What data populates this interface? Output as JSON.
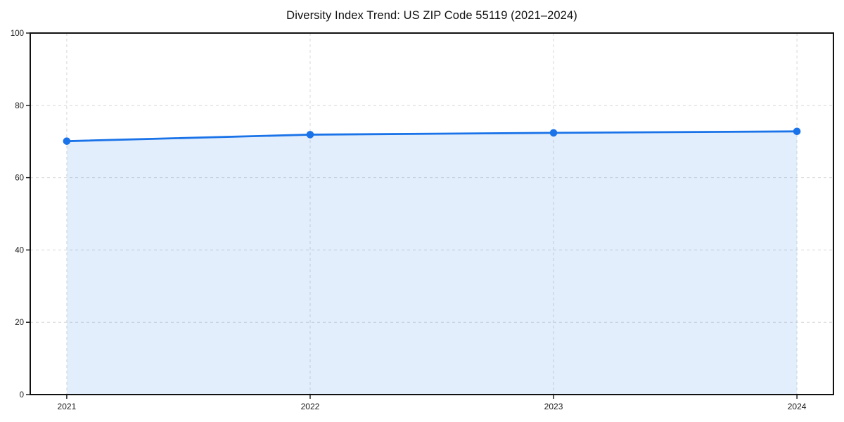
{
  "chart_data": {
    "type": "area",
    "title": "Diversity Index Trend: US ZIP Code 55119 (2021–2024)",
    "x": [
      2021,
      2022,
      2023,
      2024
    ],
    "xticklabels": [
      "2021",
      "2022",
      "2023",
      "2024"
    ],
    "series": [
      {
        "name": "Diversity Index",
        "values": [
          70.1,
          71.9,
          72.4,
          72.8
        ]
      }
    ],
    "xlabel": "",
    "ylabel": "",
    "xlim": [
      2020.85,
      2024.15
    ],
    "ylim": [
      0,
      100
    ],
    "yticks": [
      0,
      20,
      40,
      60,
      80,
      100
    ],
    "grid": "dashed-both-axes",
    "legend": "none",
    "colors": {
      "line": "#1a73e8",
      "marker": "#1a73e8",
      "fill": "#1a73e8",
      "fill_opacity": "0.12",
      "gridline": "#d6d6d6",
      "frame": "#111111",
      "tick_label": "#1a1a1a",
      "background": "#ffffff"
    }
  }
}
